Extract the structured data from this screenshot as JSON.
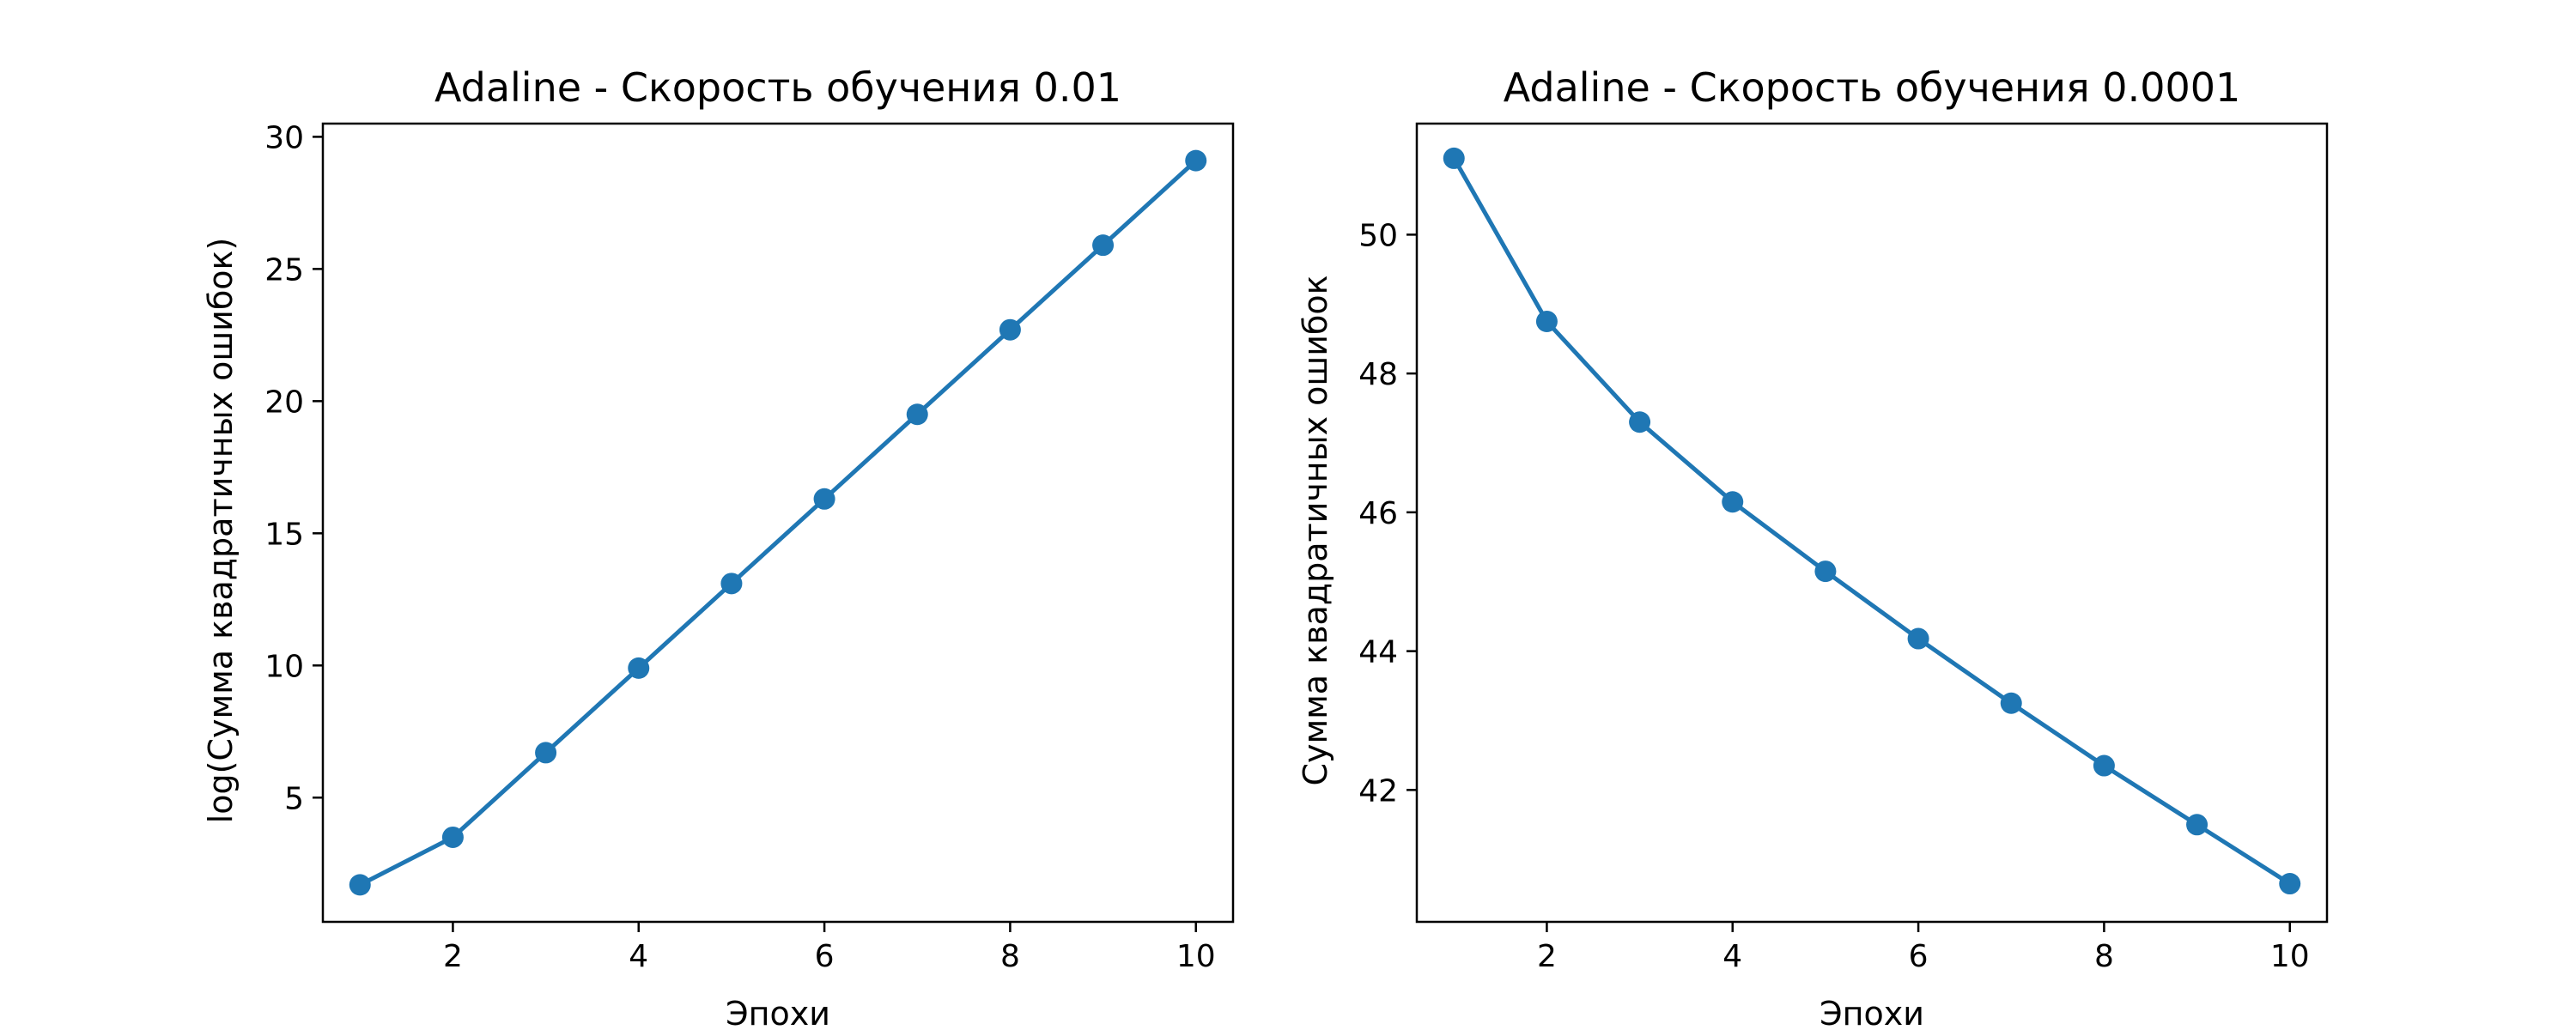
{
  "chart_data": [
    {
      "type": "line",
      "title": "Adaline - Скорость обучения 0.01",
      "xlabel": "Эпохи",
      "ylabel": "log(Сумма квадратичных ошибок)",
      "x": [
        1,
        2,
        3,
        4,
        5,
        6,
        7,
        8,
        9,
        10
      ],
      "series": [
        {
          "values": [
            1.7,
            3.5,
            6.7,
            9.9,
            13.1,
            16.3,
            19.5,
            22.7,
            25.9,
            29.1
          ]
        }
      ],
      "xlim": [
        0.6,
        10.4
      ],
      "ylim": [
        0.3,
        30.5
      ],
      "xticks": [
        2,
        4,
        6,
        8,
        10
      ],
      "yticks": [
        5,
        10,
        15,
        20,
        25,
        30
      ],
      "marker": "circle",
      "grid": false,
      "color": "#1f77b4"
    },
    {
      "type": "line",
      "title": "Adaline - Скорость обучения 0.0001",
      "xlabel": "Эпохи",
      "ylabel": "Сумма квадратичных ошибок",
      "x": [
        1,
        2,
        3,
        4,
        5,
        6,
        7,
        8,
        9,
        10
      ],
      "series": [
        {
          "values": [
            51.1,
            48.75,
            47.3,
            46.15,
            45.15,
            44.18,
            43.25,
            42.35,
            41.5,
            40.65
          ]
        }
      ],
      "xlim": [
        0.6,
        10.4
      ],
      "ylim": [
        40.1,
        51.6
      ],
      "xticks": [
        2,
        4,
        6,
        8,
        10
      ],
      "yticks": [
        42,
        44,
        46,
        48,
        50
      ],
      "marker": "circle",
      "grid": false,
      "color": "#1f77b4"
    }
  ]
}
